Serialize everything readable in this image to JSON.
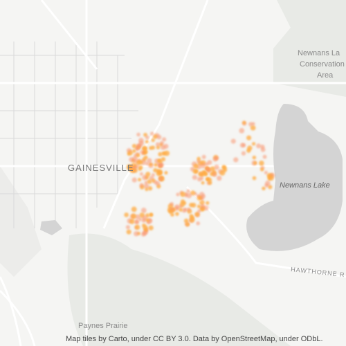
{
  "map": {
    "labels": {
      "area_1": "Newnans La",
      "area_2": "Conservation",
      "area_3": "Area",
      "city": "GAINESVILLE",
      "lake": "Newnans Lake",
      "road": "HAWTHORNE R",
      "preserve": "Paynes Prairie"
    }
  },
  "attribution": "Map tiles by Carto, under CC BY 3.0. Data by OpenStreetMap, under ODbL."
}
